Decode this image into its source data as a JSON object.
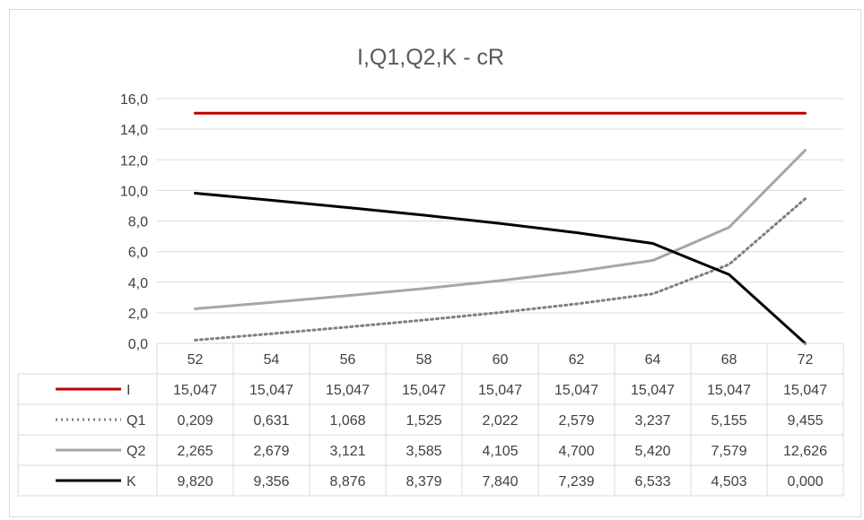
{
  "chart_data": {
    "type": "line",
    "title": "I,Q1,Q2,K - cR",
    "categories": [
      "52",
      "54",
      "56",
      "58",
      "60",
      "62",
      "64",
      "68",
      "72"
    ],
    "ylim": [
      0,
      16
    ],
    "y_ticks": [
      "0,0",
      "2,0",
      "4,0",
      "6,0",
      "8,0",
      "10,0",
      "12,0",
      "14,0",
      "16,0"
    ],
    "grid": true,
    "legend_position": "data-table",
    "series": [
      {
        "name": "I",
        "color": "#c00000",
        "style": "solid",
        "values": [
          15.047,
          15.047,
          15.047,
          15.047,
          15.047,
          15.047,
          15.047,
          15.047,
          15.047
        ],
        "labels": [
          "15,047",
          "15,047",
          "15,047",
          "15,047",
          "15,047",
          "15,047",
          "15,047",
          "15,047",
          "15,047"
        ]
      },
      {
        "name": "Q1",
        "color": "#7f7f7f",
        "style": "dotted",
        "values": [
          0.209,
          0.631,
          1.068,
          1.525,
          2.022,
          2.579,
          3.237,
          5.155,
          9.455
        ],
        "labels": [
          "0,209",
          "0,631",
          "1,068",
          "1,525",
          "2,022",
          "2,579",
          "3,237",
          "5,155",
          "9,455"
        ]
      },
      {
        "name": "Q2",
        "color": "#a6a6a6",
        "style": "solid",
        "values": [
          2.265,
          2.679,
          3.121,
          3.585,
          4.105,
          4.7,
          5.42,
          7.579,
          12.626
        ],
        "labels": [
          "2,265",
          "2,679",
          "3,121",
          "3,585",
          "4,105",
          "4,700",
          "5,420",
          "7,579",
          "12,626"
        ]
      },
      {
        "name": "K",
        "color": "#000000",
        "style": "solid",
        "values": [
          9.82,
          9.356,
          8.876,
          8.379,
          7.84,
          7.239,
          6.533,
          4.503,
          0.0
        ],
        "labels": [
          "9,820",
          "9,356",
          "8,876",
          "8,379",
          "7,840",
          "7,239",
          "6,533",
          "4,503",
          "0,000"
        ]
      }
    ]
  }
}
